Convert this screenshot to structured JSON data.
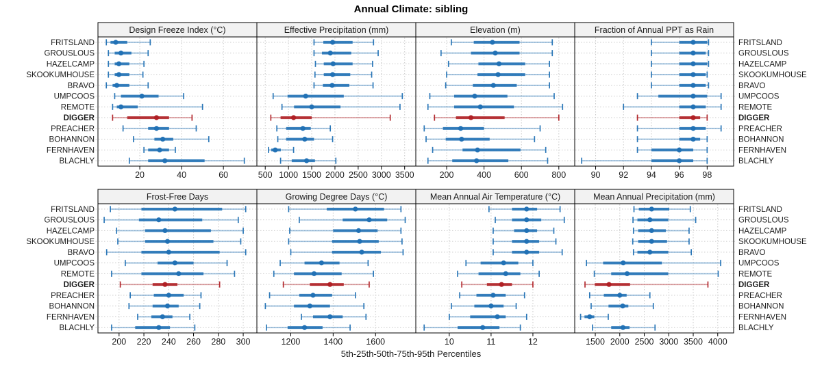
{
  "page": {
    "title": "Annual Climate: sibling",
    "footer": "5th-25th-50th-75th-95th Percentiles"
  },
  "chart_data": {
    "type": "dotplot",
    "title": "Annual Climate: sibling",
    "caption": "5th-25th-50th-75th-95th Percentiles",
    "percentiles": [
      5,
      25,
      50,
      75,
      95
    ],
    "sites": [
      "FRITSLAND",
      "GROUSLOUS",
      "HAZELCAMP",
      "SKOOKUMHOUSE",
      "BRAVO",
      "UMPCOOS",
      "REMOTE",
      "DIGGER",
      "PREACHER",
      "BOHANNON",
      "FERNHAVEN",
      "BLACHLY"
    ],
    "highlight_site": "DIGGER",
    "colors": {
      "normal": "#2171b5",
      "highlight": "#b02025",
      "grid": "#c9c9c9",
      "strip_bg": "#f2f2f2",
      "border": "#000000"
    },
    "layout": {
      "rows": 2,
      "cols": 4,
      "grid": "dotted",
      "site_labels_both_sides": true,
      "legend": "none"
    },
    "panels": [
      {
        "title": "Design Freeze Index (°C)",
        "ticks": [
          20,
          40,
          60
        ],
        "xlim": [
          0,
          76
        ],
        "values": [
          [
            4,
            6,
            8.5,
            14,
            25
          ],
          [
            5,
            8,
            11,
            16,
            24
          ],
          [
            5,
            8,
            10,
            15,
            22
          ],
          [
            5,
            8,
            10,
            15,
            21.5
          ],
          [
            4,
            7,
            9,
            15,
            24
          ],
          [
            8,
            11,
            21,
            29,
            41
          ],
          [
            7,
            9,
            11,
            19,
            50
          ],
          [
            7,
            14,
            28,
            34,
            45
          ],
          [
            12,
            24,
            28,
            34,
            47
          ],
          [
            17,
            27,
            31,
            36,
            53
          ],
          [
            22,
            24,
            29.5,
            34,
            37
          ],
          [
            15,
            24,
            32,
            51,
            70
          ]
        ]
      },
      {
        "title": "Effective Precipitation (mm)",
        "ticks": [
          500,
          1000,
          1500,
          2000,
          2500,
          3000,
          3500
        ],
        "xlim": [
          320,
          3740
        ],
        "values": [
          [
            1550,
            1750,
            1950,
            2380,
            2830
          ],
          [
            1550,
            1720,
            1900,
            2350,
            2930
          ],
          [
            1580,
            1760,
            1960,
            2380,
            2810
          ],
          [
            1570,
            1760,
            1950,
            2330,
            2790
          ],
          [
            1550,
            1740,
            1940,
            2310,
            2820
          ],
          [
            670,
            980,
            1370,
            2190,
            3450
          ],
          [
            860,
            1120,
            1500,
            2120,
            3400
          ],
          [
            620,
            830,
            1110,
            1500,
            3190
          ],
          [
            750,
            950,
            1310,
            1480,
            1900
          ],
          [
            770,
            950,
            1350,
            1550,
            1950
          ],
          [
            570,
            630,
            715,
            835,
            1110
          ],
          [
            830,
            1070,
            1390,
            1570,
            2020
          ]
        ]
      },
      {
        "title": "Elevation (m)",
        "ticks": [
          200,
          400,
          600,
          800
        ],
        "xlim": [
          35,
          885
        ],
        "values": [
          [
            225,
            345,
            445,
            590,
            765
          ],
          [
            170,
            330,
            460,
            590,
            765
          ],
          [
            210,
            370,
            480,
            620,
            750
          ],
          [
            200,
            365,
            475,
            620,
            750
          ],
          [
            195,
            340,
            450,
            575,
            750
          ],
          [
            110,
            240,
            350,
            525,
            775
          ],
          [
            100,
            240,
            380,
            560,
            820
          ],
          [
            135,
            250,
            330,
            510,
            800
          ],
          [
            80,
            180,
            275,
            400,
            700
          ],
          [
            90,
            195,
            280,
            430,
            670
          ],
          [
            125,
            285,
            365,
            595,
            730
          ],
          [
            100,
            230,
            360,
            530,
            740
          ]
        ]
      },
      {
        "title": "Fraction of Annual PPT as Rain",
        "ticks": [
          90,
          92,
          94,
          96,
          98
        ],
        "xlim": [
          88.5,
          99.9
        ],
        "values": [
          [
            94,
            96,
            97,
            98,
            98.1
          ],
          [
            94,
            96,
            97,
            97.9,
            98.1
          ],
          [
            94,
            96,
            97,
            98,
            98.1
          ],
          [
            94,
            96,
            97,
            97.9,
            98
          ],
          [
            94,
            96,
            97,
            97.9,
            98.1
          ],
          [
            93,
            94.5,
            97,
            98,
            99
          ],
          [
            92,
            96,
            97,
            97.9,
            99
          ],
          [
            93,
            96,
            97,
            97.5,
            98
          ],
          [
            93,
            96,
            97,
            97.9,
            99
          ],
          [
            93,
            96,
            97,
            97.5,
            98
          ],
          [
            93,
            94,
            96,
            97,
            98
          ],
          [
            89,
            94,
            96,
            97,
            98
          ]
        ]
      },
      {
        "title": "Frost-Free Days",
        "ticks": [
          200,
          220,
          240,
          260,
          280,
          300
        ],
        "xlim": [
          183,
          311
        ],
        "values": [
          [
            193,
            218,
            245,
            283,
            302
          ],
          [
            188,
            216,
            232,
            267,
            296
          ],
          [
            198,
            221,
            237,
            274,
            300
          ],
          [
            199,
            221,
            239,
            276,
            298
          ],
          [
            190,
            218,
            240,
            281,
            302
          ],
          [
            205,
            231,
            245,
            260,
            287
          ],
          [
            194,
            218,
            248,
            268,
            293
          ],
          [
            201,
            227,
            237,
            247,
            281
          ],
          [
            209,
            228,
            240,
            252,
            266
          ],
          [
            208,
            227,
            239,
            248,
            265
          ],
          [
            215,
            226,
            235,
            243,
            257
          ],
          [
            194,
            213,
            232,
            241,
            261
          ]
        ]
      },
      {
        "title": "Growing Degree Days (°C)",
        "ticks": [
          1200,
          1400,
          1600
        ],
        "xlim": [
          1040,
          1790
        ],
        "values": [
          [
            1190,
            1370,
            1505,
            1640,
            1720
          ],
          [
            1240,
            1445,
            1570,
            1655,
            1740
          ],
          [
            1195,
            1400,
            1520,
            1610,
            1720
          ],
          [
            1190,
            1395,
            1525,
            1615,
            1725
          ],
          [
            1200,
            1395,
            1535,
            1625,
            1730
          ],
          [
            1150,
            1265,
            1345,
            1430,
            1565
          ],
          [
            1120,
            1215,
            1310,
            1440,
            1590
          ],
          [
            1165,
            1290,
            1385,
            1450,
            1570
          ],
          [
            1100,
            1240,
            1305,
            1395,
            1505
          ],
          [
            1080,
            1215,
            1290,
            1385,
            1545
          ],
          [
            1250,
            1305,
            1385,
            1445,
            1555
          ],
          [
            1085,
            1185,
            1265,
            1350,
            1480
          ]
        ]
      },
      {
        "title": "Mean Annual Air Temperature (°C)",
        "ticks": [
          10,
          11,
          12
        ],
        "xlim": [
          9.2,
          13.0
        ],
        "values": [
          [
            10.95,
            11.5,
            11.85,
            12.1,
            12.65
          ],
          [
            11.1,
            11.5,
            11.85,
            12.2,
            12.75
          ],
          [
            11.05,
            11.55,
            11.85,
            12.1,
            12.5
          ],
          [
            11.05,
            11.5,
            11.85,
            12.15,
            12.55
          ],
          [
            11.05,
            11.5,
            11.85,
            12.15,
            12.7
          ],
          [
            10.4,
            10.75,
            11.3,
            11.65,
            12.0
          ],
          [
            10.2,
            10.7,
            11.35,
            11.7,
            12.15
          ],
          [
            10.3,
            10.9,
            11.25,
            11.5,
            12.0
          ],
          [
            10.25,
            10.65,
            11.05,
            11.35,
            11.8
          ],
          [
            10.05,
            10.6,
            11.0,
            11.3,
            11.6
          ],
          [
            10.0,
            10.5,
            11.15,
            11.35,
            11.85
          ],
          [
            9.4,
            10.2,
            10.8,
            11.2,
            11.7
          ]
        ]
      },
      {
        "title": "Mean Annual Precipitation (mm)",
        "ticks": [
          1500,
          2000,
          2500,
          3000,
          3500,
          4000
        ],
        "xlim": [
          1080,
          4325
        ],
        "values": [
          [
            2290,
            2390,
            2650,
            3010,
            3440
          ],
          [
            2270,
            2360,
            2615,
            2990,
            3550
          ],
          [
            2280,
            2375,
            2650,
            2940,
            3415
          ],
          [
            2265,
            2375,
            2650,
            2965,
            3415
          ],
          [
            2280,
            2360,
            2615,
            2990,
            3460
          ],
          [
            1320,
            1660,
            2070,
            2860,
            4060
          ],
          [
            1480,
            1825,
            2150,
            2990,
            4010
          ],
          [
            1290,
            1490,
            1780,
            2210,
            3800
          ],
          [
            1385,
            1675,
            2000,
            2140,
            2615
          ],
          [
            1415,
            1770,
            2060,
            2175,
            2685
          ],
          [
            1200,
            1280,
            1385,
            1480,
            1765
          ],
          [
            1445,
            1825,
            2065,
            2200,
            2720
          ]
        ]
      }
    ]
  }
}
